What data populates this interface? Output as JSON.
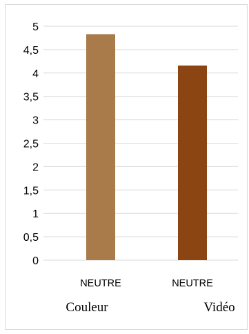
{
  "chart_data": {
    "type": "bar",
    "categories": [
      "NEUTRE",
      "NEUTRE"
    ],
    "group_labels": [
      "Couleur",
      "Vidéo"
    ],
    "values": [
      4.83,
      4.16
    ],
    "bar_colors": [
      "#a97a4a",
      "#8b4513"
    ],
    "ylim": [
      0,
      5
    ],
    "y_ticks": [
      "0",
      "0,5",
      "1",
      "1,5",
      "2",
      "2,5",
      "3",
      "3,5",
      "4",
      "4,5",
      "5"
    ],
    "grid": true,
    "gridline_color": "#d9d9d9",
    "legend": "none"
  }
}
